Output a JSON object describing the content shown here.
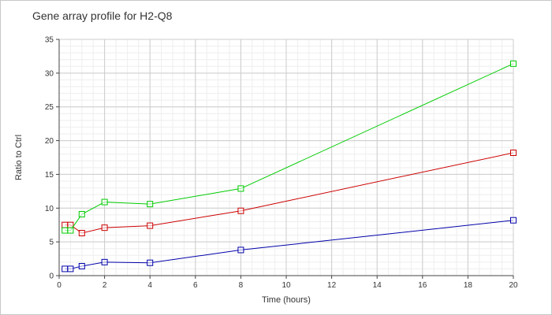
{
  "chart_data": {
    "type": "line",
    "title": "Gene array profile for H2-Q8",
    "xlabel": "Time (hours)",
    "ylabel": "Ratio to Ctrl",
    "xlim": [
      0,
      20
    ],
    "ylim": [
      0,
      35
    ],
    "xticks": [
      0,
      2,
      4,
      6,
      8,
      10,
      12,
      14,
      16,
      18,
      20
    ],
    "yticks": [
      0,
      5,
      10,
      15,
      20,
      25,
      30,
      35
    ],
    "grid": true,
    "marker": "open-square",
    "series": [
      {
        "color": "#0000aa",
        "x": [
          0.25,
          0.5,
          1,
          2,
          4,
          8,
          20
        ],
        "y": [
          1.0,
          1.0,
          1.4,
          2.0,
          1.9,
          3.8,
          8.2
        ]
      },
      {
        "color": "#cc0000",
        "x": [
          0.25,
          0.5,
          1,
          2,
          4,
          8,
          20
        ],
        "y": [
          7.5,
          7.5,
          6.3,
          7.1,
          7.4,
          9.6,
          18.2
        ]
      },
      {
        "color": "#00cc00",
        "x": [
          0.25,
          0.5,
          1,
          2,
          4,
          8,
          20
        ],
        "y": [
          6.7,
          6.7,
          9.1,
          10.9,
          10.6,
          12.9,
          31.4
        ]
      }
    ]
  }
}
